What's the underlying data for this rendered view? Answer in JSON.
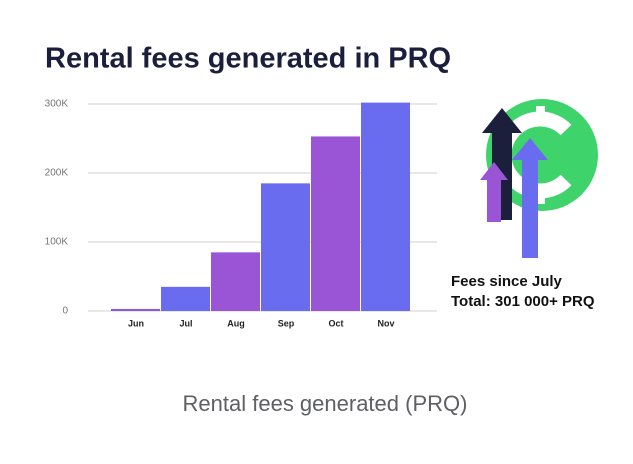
{
  "chart_data": {
    "type": "bar",
    "title": "Rental fees generated in PRQ",
    "categories": [
      "Jun",
      "Jul",
      "Aug",
      "Sep",
      "Oct",
      "Nov"
    ],
    "values": [
      3000,
      35000,
      85000,
      185000,
      253000,
      302000
    ],
    "colors": [
      "#8b5ad8",
      "#6a6cf0",
      "#9a55d6",
      "#6a6cf0",
      "#9a55d6",
      "#6a6cf0"
    ],
    "ylim": [
      0,
      300000
    ],
    "yticks": [
      0,
      {
        "value": 100000,
        "label": "100K"
      },
      {
        "value": 200000,
        "label": "200K"
      },
      {
        "value": 300000,
        "label": "300K"
      }
    ],
    "grid": true,
    "annotation": [
      "Fees since July",
      "Total: 301 000+ PRQ"
    ],
    "caption": "Rental fees generated (PRQ)"
  }
}
